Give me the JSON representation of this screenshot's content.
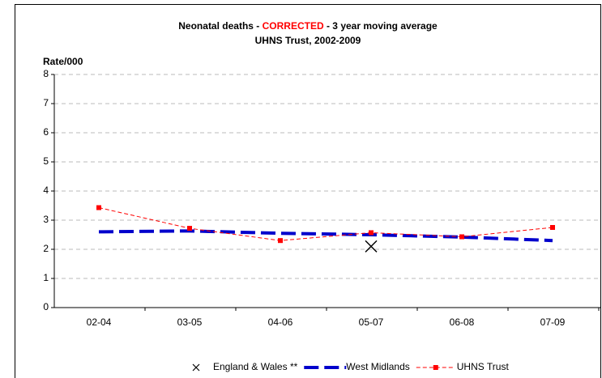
{
  "chart_data": {
    "type": "line",
    "title_segments": [
      {
        "text": "Neonatal deaths - ",
        "color": "#000000"
      },
      {
        "text": "CORRECTED",
        "color": "#ff0000"
      },
      {
        "text": " - 3 year moving average",
        "color": "#000000"
      }
    ],
    "subtitle": "UHNS Trust, 2002-2009",
    "y_label": "Rate/000",
    "categories": [
      "02-04",
      "03-05",
      "04-06",
      "05-07",
      "06-08",
      "07-09"
    ],
    "series": [
      {
        "name": "England & Wales **",
        "color": "#000000",
        "marker": "x",
        "values": [
          null,
          null,
          null,
          2.1,
          null,
          null
        ]
      },
      {
        "name": "West Midlands",
        "color": "#0000cc",
        "marker": "none",
        "values": [
          2.6,
          2.63,
          2.55,
          2.5,
          2.42,
          2.3
        ]
      },
      {
        "name": "UHNS Trust",
        "color": "#ff0000",
        "marker": "square",
        "values": [
          3.43,
          2.72,
          2.3,
          2.57,
          2.43,
          2.75
        ]
      }
    ],
    "ylim": [
      0,
      8
    ],
    "yticks": [
      0,
      1,
      2,
      3,
      4,
      5,
      6,
      7,
      8
    ],
    "grid": true,
    "legend": "bottom"
  }
}
